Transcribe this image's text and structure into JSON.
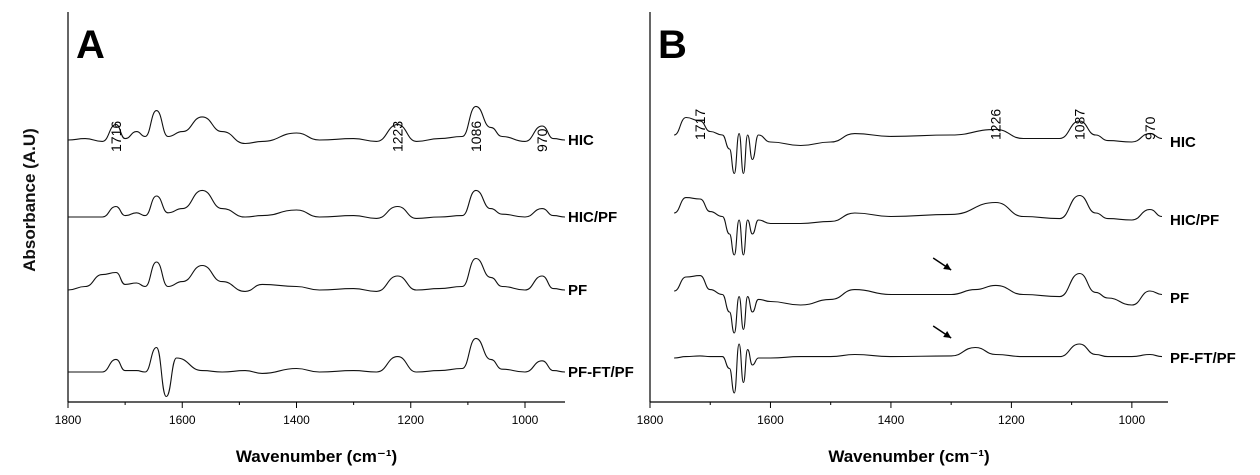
{
  "y_axis_label": "Absorbance (A.U)",
  "chart_data": [
    {
      "type": "line",
      "panel_label": "A",
      "xlabel": "Wavenumber (cm⁻¹)",
      "xlim": [
        1800,
        930
      ],
      "x_ticks": [
        "1800",
        "1600",
        "1400",
        "1200",
        "1000"
      ],
      "peak_annotations": [
        "1716",
        "1223",
        "1086",
        "970"
      ],
      "peak_positions": [
        1716,
        1223,
        1086,
        970
      ],
      "series": [
        {
          "name": "HIC",
          "points": [
            [
              1800,
              0
            ],
            [
              1770,
              0.02
            ],
            [
              1740,
              -0.02
            ],
            [
              1716,
              0.22
            ],
            [
              1700,
              0.02
            ],
            [
              1680,
              0.12
            ],
            [
              1665,
              0.05
            ],
            [
              1645,
              0.42
            ],
            [
              1625,
              0.05
            ],
            [
              1600,
              0.12
            ],
            [
              1565,
              0.33
            ],
            [
              1530,
              0.12
            ],
            [
              1490,
              -0.05
            ],
            [
              1460,
              -0.02
            ],
            [
              1400,
              0.1
            ],
            [
              1360,
              0
            ],
            [
              1300,
              0.02
            ],
            [
              1260,
              -0.02
            ],
            [
              1223,
              0.22
            ],
            [
              1190,
              -0.02
            ],
            [
              1150,
              0.02
            ],
            [
              1110,
              0.05
            ],
            [
              1086,
              0.48
            ],
            [
              1060,
              0.18
            ],
            [
              1040,
              0.05
            ],
            [
              1000,
              -0.02
            ],
            [
              970,
              0.2
            ],
            [
              950,
              0.02
            ],
            [
              930,
              0
            ]
          ]
        },
        {
          "name": "HIC/PF",
          "points": [
            [
              1800,
              0
            ],
            [
              1770,
              0
            ],
            [
              1740,
              0
            ],
            [
              1716,
              0.15
            ],
            [
              1700,
              0.02
            ],
            [
              1680,
              0.06
            ],
            [
              1665,
              0.02
            ],
            [
              1645,
              0.3
            ],
            [
              1625,
              0.06
            ],
            [
              1600,
              0.12
            ],
            [
              1565,
              0.38
            ],
            [
              1530,
              0.12
            ],
            [
              1490,
              0
            ],
            [
              1460,
              0.02
            ],
            [
              1400,
              0.1
            ],
            [
              1360,
              0
            ],
            [
              1300,
              0.02
            ],
            [
              1260,
              -0.02
            ],
            [
              1223,
              0.15
            ],
            [
              1190,
              -0.02
            ],
            [
              1150,
              0
            ],
            [
              1110,
              0.02
            ],
            [
              1086,
              0.38
            ],
            [
              1060,
              0.12
            ],
            [
              1040,
              0.04
            ],
            [
              1000,
              0
            ],
            [
              970,
              0.12
            ],
            [
              950,
              0.02
            ],
            [
              930,
              0
            ]
          ]
        },
        {
          "name": "PF",
          "points": [
            [
              1800,
              0
            ],
            [
              1770,
              0.05
            ],
            [
              1740,
              0.22
            ],
            [
              1716,
              0.25
            ],
            [
              1700,
              0.08
            ],
            [
              1680,
              0.1
            ],
            [
              1665,
              0.05
            ],
            [
              1645,
              0.4
            ],
            [
              1625,
              0.05
            ],
            [
              1600,
              0.12
            ],
            [
              1565,
              0.35
            ],
            [
              1530,
              0.12
            ],
            [
              1490,
              -0.02
            ],
            [
              1460,
              0.08
            ],
            [
              1400,
              0.05
            ],
            [
              1360,
              0
            ],
            [
              1300,
              0.02
            ],
            [
              1260,
              -0.02
            ],
            [
              1223,
              0.2
            ],
            [
              1190,
              0
            ],
            [
              1150,
              0.02
            ],
            [
              1110,
              0.05
            ],
            [
              1086,
              0.45
            ],
            [
              1060,
              0.18
            ],
            [
              1040,
              0.05
            ],
            [
              1000,
              0
            ],
            [
              970,
              0.2
            ],
            [
              950,
              0.02
            ],
            [
              930,
              0
            ]
          ]
        },
        {
          "name": "PF-FT/PF",
          "points": [
            [
              1800,
              0
            ],
            [
              1770,
              0
            ],
            [
              1740,
              0
            ],
            [
              1716,
              0.18
            ],
            [
              1700,
              0.02
            ],
            [
              1680,
              0.02
            ],
            [
              1665,
              0
            ],
            [
              1645,
              0.35
            ],
            [
              1628,
              -0.35
            ],
            [
              1610,
              0.2
            ],
            [
              1565,
              0.02
            ],
            [
              1530,
              0
            ],
            [
              1490,
              0.02
            ],
            [
              1460,
              -0.02
            ],
            [
              1400,
              0.05
            ],
            [
              1360,
              0
            ],
            [
              1300,
              0.02
            ],
            [
              1260,
              0
            ],
            [
              1223,
              0.22
            ],
            [
              1190,
              0
            ],
            [
              1150,
              0.02
            ],
            [
              1110,
              0.05
            ],
            [
              1086,
              0.48
            ],
            [
              1060,
              0.18
            ],
            [
              1040,
              0.04
            ],
            [
              1000,
              0
            ],
            [
              970,
              0.16
            ],
            [
              950,
              0.02
            ],
            [
              930,
              0
            ]
          ]
        }
      ]
    },
    {
      "type": "line",
      "panel_label": "B",
      "xlabel": "Wavenumber (cm⁻¹)",
      "xlim": [
        1800,
        940
      ],
      "x_ticks": [
        "1800",
        "1600",
        "1400",
        "1200",
        "1000"
      ],
      "peak_annotations": [
        "1717",
        "1226",
        "1087",
        "970"
      ],
      "peak_positions": [
        1717,
        1226,
        1087,
        970
      ],
      "series": [
        {
          "name": "HIC",
          "points": [
            [
              1760,
              0.1
            ],
            [
              1740,
              0.35
            ],
            [
              1717,
              0.3
            ],
            [
              1700,
              0.15
            ],
            [
              1680,
              0.1
            ],
            [
              1668,
              -0.1
            ],
            [
              1660,
              -0.45
            ],
            [
              1652,
              0.12
            ],
            [
              1645,
              -0.45
            ],
            [
              1638,
              0.1
            ],
            [
              1630,
              -0.25
            ],
            [
              1620,
              0.1
            ],
            [
              1600,
              0
            ],
            [
              1550,
              -0.05
            ],
            [
              1500,
              0
            ],
            [
              1460,
              0.12
            ],
            [
              1400,
              0.08
            ],
            [
              1300,
              0.1
            ],
            [
              1226,
              0.18
            ],
            [
              1180,
              0.05
            ],
            [
              1120,
              0.05
            ],
            [
              1087,
              0.3
            ],
            [
              1060,
              0.1
            ],
            [
              1040,
              0.02
            ],
            [
              1000,
              0
            ],
            [
              970,
              0.12
            ],
            [
              950,
              0.05
            ]
          ]
        },
        {
          "name": "HIC/PF",
          "points": [
            [
              1760,
              0.1
            ],
            [
              1740,
              0.32
            ],
            [
              1717,
              0.3
            ],
            [
              1700,
              0.12
            ],
            [
              1680,
              0.05
            ],
            [
              1668,
              -0.2
            ],
            [
              1660,
              -0.5
            ],
            [
              1652,
              0
            ],
            [
              1645,
              -0.5
            ],
            [
              1638,
              0
            ],
            [
              1630,
              -0.2
            ],
            [
              1620,
              0
            ],
            [
              1600,
              -0.05
            ],
            [
              1550,
              -0.05
            ],
            [
              1500,
              -0.02
            ],
            [
              1460,
              0.1
            ],
            [
              1400,
              0.05
            ],
            [
              1300,
              0.08
            ],
            [
              1226,
              0.25
            ],
            [
              1180,
              0.05
            ],
            [
              1120,
              0.02
            ],
            [
              1087,
              0.35
            ],
            [
              1060,
              0.1
            ],
            [
              1040,
              0.02
            ],
            [
              1000,
              0
            ],
            [
              970,
              0.15
            ],
            [
              950,
              0.05
            ]
          ]
        },
        {
          "name": "PF",
          "points": [
            [
              1760,
              0.1
            ],
            [
              1740,
              0.3
            ],
            [
              1717,
              0.32
            ],
            [
              1700,
              0.12
            ],
            [
              1680,
              0.05
            ],
            [
              1668,
              -0.2
            ],
            [
              1660,
              -0.5
            ],
            [
              1652,
              0.02
            ],
            [
              1645,
              -0.45
            ],
            [
              1638,
              0.02
            ],
            [
              1630,
              -0.2
            ],
            [
              1620,
              -0.02
            ],
            [
              1600,
              -0.05
            ],
            [
              1550,
              -0.1
            ],
            [
              1500,
              -0.02
            ],
            [
              1460,
              0.12
            ],
            [
              1400,
              0.05
            ],
            [
              1300,
              0.05
            ],
            [
              1260,
              0.12
            ],
            [
              1226,
              0.18
            ],
            [
              1180,
              0.05
            ],
            [
              1120,
              0.02
            ],
            [
              1087,
              0.35
            ],
            [
              1060,
              0.08
            ],
            [
              1040,
              0
            ],
            [
              1000,
              -0.1
            ],
            [
              970,
              0.1
            ],
            [
              950,
              0.05
            ]
          ]
        },
        {
          "name": "PF-FT/PF",
          "points": [
            [
              1760,
              0
            ],
            [
              1740,
              0.02
            ],
            [
              1717,
              0.03
            ],
            [
              1700,
              0.02
            ],
            [
              1680,
              0.02
            ],
            [
              1668,
              -0.15
            ],
            [
              1660,
              -0.5
            ],
            [
              1652,
              0.2
            ],
            [
              1645,
              -0.35
            ],
            [
              1638,
              0.12
            ],
            [
              1630,
              -0.1
            ],
            [
              1620,
              0
            ],
            [
              1600,
              0
            ],
            [
              1550,
              0.02
            ],
            [
              1500,
              0.02
            ],
            [
              1460,
              0.05
            ],
            [
              1400,
              0.02
            ],
            [
              1300,
              0.03
            ],
            [
              1260,
              0.15
            ],
            [
              1226,
              0.05
            ],
            [
              1180,
              0.02
            ],
            [
              1120,
              0.02
            ],
            [
              1087,
              0.2
            ],
            [
              1060,
              0.05
            ],
            [
              1040,
              0.02
            ],
            [
              1000,
              0.02
            ],
            [
              970,
              0.05
            ],
            [
              950,
              0.02
            ]
          ]
        }
      ]
    }
  ]
}
